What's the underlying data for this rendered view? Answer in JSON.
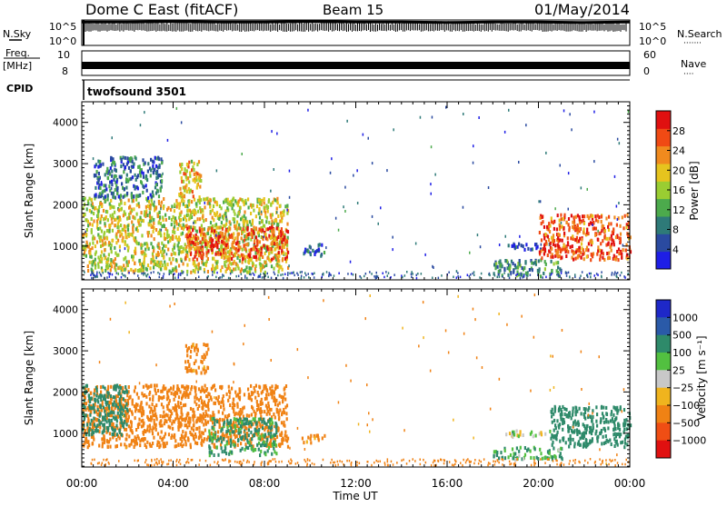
{
  "header": {
    "title": "Dome C East (fitACF)",
    "beam": "Beam 15",
    "date": "01/May/2014"
  },
  "chart_data": [
    {
      "name": "noise-panel",
      "type": "line",
      "left_label": "N.Sky",
      "right_label": "N.Search",
      "right_legend": "·······",
      "left_ticks": [
        "10^5",
        "10^0"
      ],
      "right_ticks": [
        "10^5",
        "10^0"
      ],
      "x": [
        0,
        2,
        4,
        6,
        8,
        10,
        12,
        14,
        16,
        18,
        20,
        22,
        24
      ],
      "values": [
        4.6,
        4.6,
        4.7,
        4.6,
        4.6,
        4.7,
        4.6,
        4.6,
        4.5,
        4.6,
        4.6,
        4.5,
        4.6
      ],
      "ylim": [
        0,
        5
      ],
      "xlim": [
        0,
        24
      ]
    },
    {
      "name": "freq-nave-panel",
      "type": "line",
      "left_label_top": "Freq.",
      "left_label_unit": "[MHz]",
      "right_label": "Nave",
      "right_legend": "····",
      "left_ticks": [
        "10",
        "8"
      ],
      "right_ticks": [
        "60",
        "0"
      ],
      "freq_mhz": 9.3,
      "nave": 30,
      "xlim": [
        0,
        24
      ]
    },
    {
      "name": "cpid-panel",
      "type": "table",
      "label": "CPID",
      "program": "twofsound 3501"
    },
    {
      "name": "power-panel",
      "type": "heatmap",
      "ylabel": "Slant Range [km]",
      "yticks": [
        1000,
        2000,
        3000,
        4000
      ],
      "ylim": [
        180,
        4500
      ],
      "xlim": [
        0,
        24
      ],
      "colorbar": {
        "label": "Power [dB]",
        "ticks": [
          "28",
          "24",
          "20",
          "16",
          "12",
          "8",
          "4"
        ],
        "range": [
          0,
          32
        ],
        "colors": [
          "#1e1ee6",
          "#2a4aa0",
          "#2e7a78",
          "#4caa4c",
          "#9acd32",
          "#e6c41e",
          "#f08a1e",
          "#f04a14",
          "#e01010"
        ]
      },
      "regions": [
        {
          "t0": 0.0,
          "t1": 9.0,
          "r0": 400,
          "r1": 2200,
          "level": 18
        },
        {
          "t0": 4.5,
          "t1": 9.0,
          "r0": 700,
          "r1": 1500,
          "level": 26
        },
        {
          "t0": 0.5,
          "t1": 3.5,
          "r0": 2200,
          "r1": 3200,
          "level": 8
        },
        {
          "t0": 4.2,
          "t1": 5.2,
          "r0": 2200,
          "r1": 3100,
          "level": 20
        },
        {
          "t0": 9.6,
          "t1": 10.6,
          "r0": 800,
          "r1": 1100,
          "level": 6
        },
        {
          "t0": 18.0,
          "t1": 21.0,
          "r0": 300,
          "r1": 700,
          "level": 10
        },
        {
          "t0": 18.5,
          "t1": 20.5,
          "r0": 950,
          "r1": 1100,
          "level": 6
        },
        {
          "t0": 20.0,
          "t1": 24.0,
          "r0": 700,
          "r1": 1800,
          "level": 26
        }
      ]
    },
    {
      "name": "velocity-panel",
      "type": "heatmap",
      "ylabel": "Slant Range [km]",
      "yticks": [
        1000,
        2000,
        3000,
        4000
      ],
      "ylim": [
        180,
        4500
      ],
      "xlim": [
        0,
        24
      ],
      "xticks": [
        "00:00",
        "04:00",
        "08:00",
        "12:00",
        "16:00",
        "20:00",
        "00:00"
      ],
      "xlabel": "Time UT",
      "colorbar": {
        "label": "Velocity [m s⁻¹]",
        "ticks": [
          "1000",
          "500",
          "100",
          "25",
          "−25",
          "−100",
          "−500",
          "−1000"
        ],
        "colors": [
          "#1e28c8",
          "#2a5aa8",
          "#2e8a6a",
          "#52c040",
          "#c8c8c8",
          "#f0b41e",
          "#f08214",
          "#f04e14",
          "#e01010"
        ]
      },
      "regions": [
        {
          "t0": 0.0,
          "t1": 9.0,
          "r0": 700,
          "r1": 2200,
          "level": -300
        },
        {
          "t0": 0.0,
          "t1": 2.0,
          "r0": 1000,
          "r1": 2200,
          "level": 300
        },
        {
          "t0": 4.5,
          "t1": 5.5,
          "r0": 2500,
          "r1": 3200,
          "level": -200
        },
        {
          "t0": 5.5,
          "t1": 8.5,
          "r0": 500,
          "r1": 1400,
          "level": 150
        },
        {
          "t0": 9.6,
          "t1": 10.6,
          "r0": 800,
          "r1": 1000,
          "level": -150
        },
        {
          "t0": 18.0,
          "t1": 21.0,
          "r0": 400,
          "r1": 700,
          "level": 120
        },
        {
          "t0": 18.5,
          "t1": 20.5,
          "r0": 950,
          "r1": 1100,
          "level": 0
        },
        {
          "t0": 20.5,
          "t1": 24.0,
          "r0": 700,
          "r1": 1700,
          "level": 300
        }
      ]
    }
  ]
}
